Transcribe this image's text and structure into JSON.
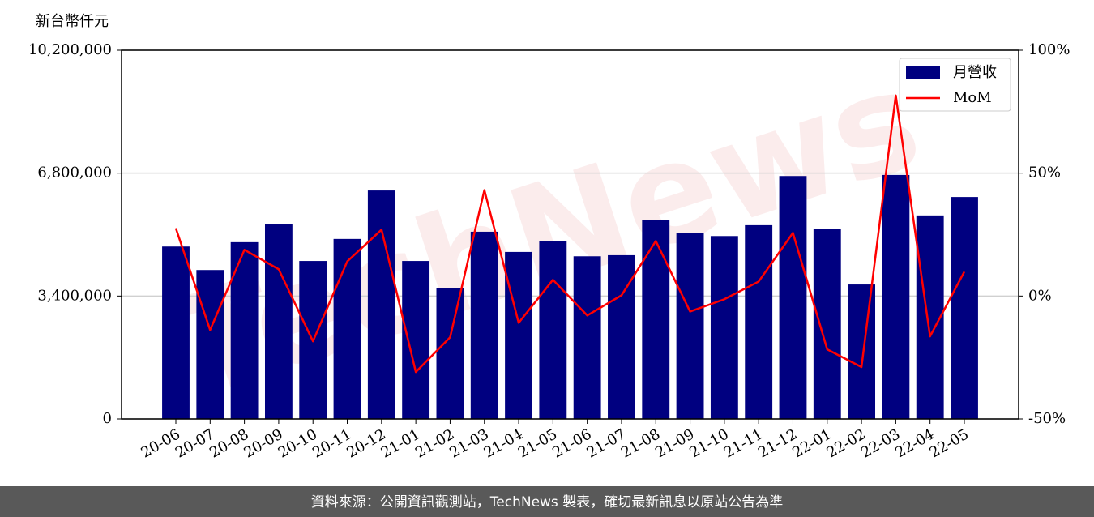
{
  "chart_data": {
    "type": "bar",
    "ylabel": "新台幣仟元",
    "watermark": "TechNews",
    "footer": "資料來源：公開資訊觀測站，TechNews 製表，確切最新訊息以原站公告為準",
    "categories": [
      "20-06",
      "20-07",
      "20-08",
      "20-09",
      "20-10",
      "20-11",
      "20-12",
      "21-01",
      "21-02",
      "21-03",
      "21-04",
      "21-05",
      "21-06",
      "21-07",
      "21-08",
      "21-09",
      "21-10",
      "21-11",
      "21-12",
      "22-01",
      "22-02",
      "22-03",
      "22-04",
      "22-05"
    ],
    "series": [
      {
        "name": "月營收",
        "type": "bar",
        "color": "#000080",
        "values": [
          4770000,
          4120000,
          4890000,
          5380000,
          4370000,
          4980000,
          6320000,
          4370000,
          3630000,
          5180000,
          4620000,
          4910000,
          4500000,
          4530000,
          5510000,
          5150000,
          5060000,
          5360000,
          6720000,
          5250000,
          3720000,
          6750000,
          5630000,
          6140000
        ]
      },
      {
        "name": "MoM",
        "type": "line",
        "axis": "y2",
        "color": "#ff0000",
        "values": [
          27.6,
          -13.8,
          18.8,
          10.9,
          -18.4,
          14.1,
          27.0,
          -30.9,
          -16.8,
          43.1,
          -10.9,
          6.6,
          -7.9,
          0.3,
          22.4,
          -6.3,
          -1.3,
          5.9,
          25.7,
          -21.7,
          -28.9,
          81.6,
          -16.4,
          9.9
        ]
      }
    ],
    "ylim": [
      0,
      10200000
    ],
    "yticks": [
      0,
      {
        "value": 3400000,
        "label": "3,400,000"
      },
      {
        "value": 6800000,
        "label": "6,800,000"
      },
      {
        "value": 10200000,
        "label": "10,200,000"
      }
    ],
    "y2lim": [
      -50,
      100
    ],
    "y2ticks": [
      {
        "value": -50,
        "label": "-50%"
      },
      {
        "value": 0,
        "label": "0%"
      },
      {
        "value": 50,
        "label": "50%"
      },
      {
        "value": 100,
        "label": "100%"
      }
    ],
    "grid": true,
    "legend": "upper right"
  }
}
